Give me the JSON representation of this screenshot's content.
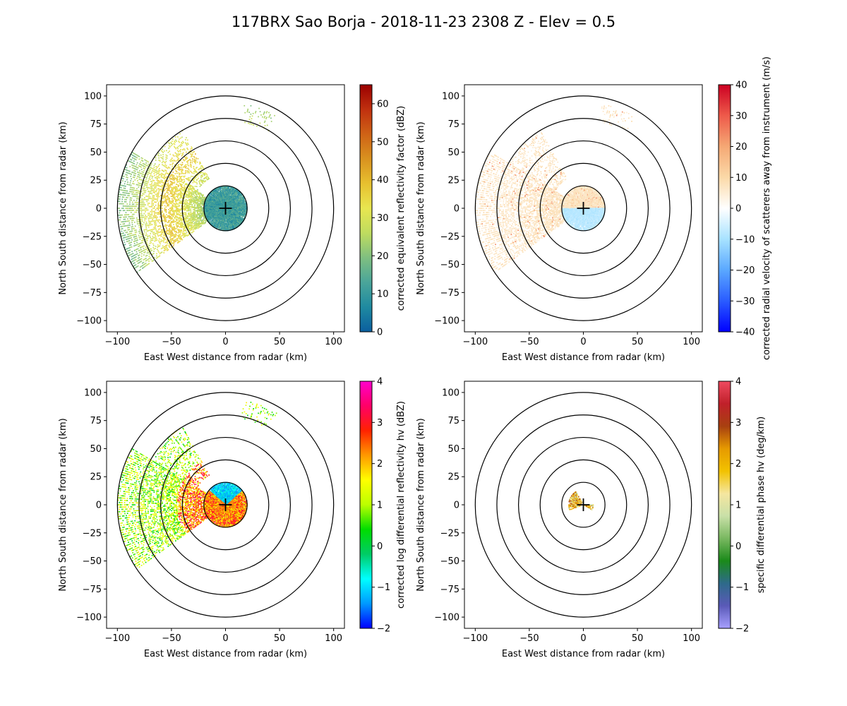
{
  "title": "117BRX Sao Borja - 2018-11-23 2308 Z -  Elev = 0.5",
  "chart_data": [
    {
      "type": "ppi",
      "field": "reflectivity",
      "xlabel": "East West distance from radar (km)",
      "ylabel": "North South distance from radar (km)",
      "xlim": [
        -110,
        110
      ],
      "ylim": [
        -110,
        110
      ],
      "xticks": [
        -100,
        -50,
        0,
        50,
        100
      ],
      "yticks": [
        -100,
        -75,
        -50,
        -25,
        0,
        25,
        50,
        75,
        100
      ],
      "range_rings_km": [
        20,
        40,
        60,
        80,
        100
      ],
      "colorbar": {
        "label": "corrected equivalent reflectivity factor (dBZ)",
        "min": 0,
        "max": 65,
        "ticks": [
          0,
          10,
          20,
          30,
          40,
          50,
          60
        ],
        "colors": [
          "#0b5f9f",
          "#1f8aa0",
          "#4aa59a",
          "#7fbf80",
          "#bfdc5f",
          "#e8e650",
          "#e7c02f",
          "#d9921f",
          "#cf6216",
          "#c0300f",
          "#9a0000"
        ]
      }
    },
    {
      "type": "ppi",
      "field": "velocity",
      "xlabel": "East West distance from radar (km)",
      "ylabel": "North South distance from radar (km)",
      "xlim": [
        -110,
        110
      ],
      "ylim": [
        -110,
        110
      ],
      "xticks": [
        -100,
        -50,
        0,
        50,
        100
      ],
      "yticks": [
        -100,
        -75,
        -50,
        -25,
        0,
        25,
        50,
        75,
        100
      ],
      "range_rings_km": [
        20,
        40,
        60,
        80,
        100
      ],
      "colorbar": {
        "label": "corrected radial velocity of scatterers away from instrument (m/s)",
        "min": -40,
        "max": 40,
        "ticks": [
          -40,
          -30,
          -20,
          -10,
          0,
          10,
          20,
          30,
          40
        ],
        "colors": [
          "#0000ff",
          "#2a5cff",
          "#5aa8ff",
          "#a7e2ff",
          "#ffffff",
          "#fbd9a8",
          "#f5a874",
          "#ee5a4a",
          "#cc0022"
        ]
      }
    },
    {
      "type": "ppi",
      "field": "differential_reflectivity",
      "xlabel": "East West distance from radar (km)",
      "ylabel": "North South distance from radar (km)",
      "xlim": [
        -110,
        110
      ],
      "ylim": [
        -110,
        110
      ],
      "xticks": [
        -100,
        -50,
        0,
        50,
        100
      ],
      "yticks": [
        -100,
        -75,
        -50,
        -25,
        0,
        25,
        50,
        75,
        100
      ],
      "range_rings_km": [
        20,
        40,
        60,
        80,
        100
      ],
      "colorbar": {
        "label": "corrected log differential reflectivity hv (dBZ)",
        "min": -2,
        "max": 4,
        "ticks": [
          -2,
          -1,
          0,
          1,
          2,
          3,
          4
        ],
        "colors": [
          "#0000ff",
          "#0099ff",
          "#00ffff",
          "#00cc66",
          "#00dd00",
          "#bbff00",
          "#ffff00",
          "#ff9900",
          "#ff2200",
          "#ff0066",
          "#ff00cc"
        ]
      }
    },
    {
      "type": "ppi",
      "field": "specific_differential_phase",
      "xlabel": "East West distance from radar (km)",
      "ylabel": "North South distance from radar (km)",
      "xlim": [
        -110,
        110
      ],
      "ylim": [
        -110,
        110
      ],
      "xticks": [
        -100,
        -50,
        0,
        50,
        100
      ],
      "yticks": [
        -100,
        -75,
        -50,
        -25,
        0,
        25,
        50,
        75,
        100
      ],
      "range_rings_km": [
        20,
        40,
        60,
        80,
        100
      ],
      "colorbar": {
        "label": "specific differential phase hv (deg/km)",
        "min": -2,
        "max": 4,
        "ticks": [
          -2,
          -1,
          0,
          1,
          2,
          3,
          4
        ],
        "colors": [
          "#a8a0ff",
          "#5a5ab8",
          "#2e6a8a",
          "#1a8a1a",
          "#79b860",
          "#c9e0a8",
          "#f5e6a0",
          "#f2c200",
          "#e69a00",
          "#a84010",
          "#c0202a",
          "#ef4a60"
        ]
      }
    }
  ]
}
